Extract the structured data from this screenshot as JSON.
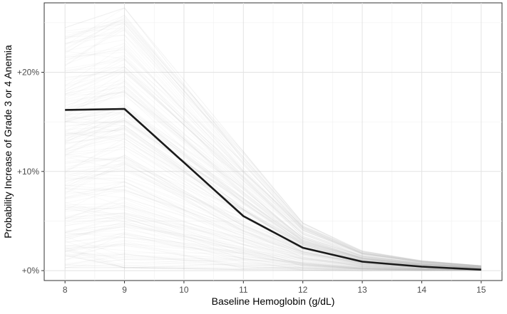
{
  "chart_data": {
    "type": "line",
    "xlabel": "Baseline Hemoglobin (g/dL)",
    "ylabel": "Probability Increase of Grade 3 or 4 Anemia",
    "x_ticks": [
      8,
      9,
      10,
      11,
      12,
      13,
      14,
      15
    ],
    "x_tick_labels": [
      "8",
      "9",
      "10",
      "11",
      "12",
      "13",
      "14",
      "15"
    ],
    "y_ticks": [
      0,
      10,
      20
    ],
    "y_tick_labels": [
      "+0%",
      "+10%",
      "+20%"
    ],
    "xlim": [
      7.65,
      15.35
    ],
    "ylim": [
      -1.0,
      27.0
    ],
    "grid": true,
    "series": [
      {
        "x": [
          8,
          9,
          11,
          12,
          13,
          14,
          15
        ],
        "values": [
          16.2,
          16.3,
          5.5,
          2.3,
          0.9,
          0.4,
          0.1
        ],
        "color": "#1a1a1a"
      }
    ],
    "uncertainty_band": {
      "description_color": "#bdbdbd",
      "x": [
        8,
        9,
        11,
        12,
        13,
        14,
        15
      ],
      "low": [
        0.3,
        0.3,
        0.1,
        0.05,
        0.0,
        0.0,
        0.0
      ],
      "high": [
        24.5,
        26.5,
        12.0,
        4.8,
        2.0,
        1.0,
        0.5
      ]
    }
  }
}
